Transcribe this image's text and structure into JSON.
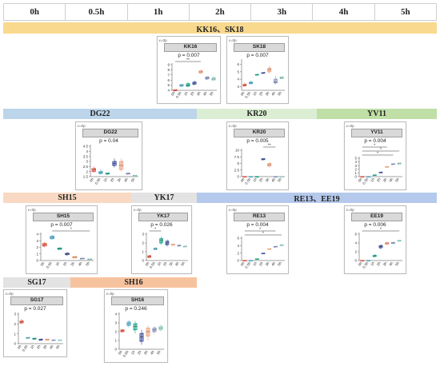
{
  "time_labels": [
    "0h",
    "0.5h",
    "1h",
    "2h",
    "3h",
    "4h",
    "5h"
  ],
  "categories": [
    "0h",
    "0.5h",
    "1h",
    "2h",
    "3h",
    "4h",
    "5h"
  ],
  "box_colors": [
    "#e8523f",
    "#4fa9c8",
    "#17a589",
    "#3b4f9a",
    "#f3a07a",
    "#8a92c2",
    "#8fd1c3"
  ],
  "bands": [
    {
      "label": "KK16、SK18",
      "color": "#f9d98d"
    },
    {
      "label": "DG22",
      "color": "#bcd5ea"
    },
    {
      "label": "KR20",
      "color": "#dbeed3"
    },
    {
      "label": "YV11",
      "color": "#bfdfa6"
    },
    {
      "label": "SH15",
      "color": "#f9d9c3"
    },
    {
      "label": "YK17",
      "color": "#e3e3e3"
    },
    {
      "label": "RE13、EE19",
      "color": "#b5c9ec"
    },
    {
      "label": "SG17",
      "color": "#e3e3e3"
    },
    {
      "label": "SH16",
      "color": "#f7c39f"
    }
  ],
  "panels": [
    {
      "title": "KK16",
      "p": "p = 0.007",
      "tag": "ε=0p",
      "ylim": [
        4,
        9
      ],
      "ticks": [
        4,
        5,
        6,
        7,
        8,
        9
      ],
      "boxes": [
        [
          3.8,
          3.9,
          4.0,
          4.1,
          4.2
        ],
        [
          4.6,
          4.8,
          5.0,
          5.1,
          5.3
        ],
        [
          4.6,
          4.8,
          5.0,
          5.3,
          5.6
        ],
        [
          5.0,
          5.2,
          5.4,
          5.6,
          5.9
        ],
        [
          7.2,
          7.4,
          7.6,
          7.8,
          8.1
        ],
        [
          6.0,
          6.2,
          6.4,
          6.6,
          6.8
        ],
        [
          5.9,
          6.0,
          6.2,
          6.5,
          6.8
        ]
      ],
      "sig": [
        {
          "from": 0,
          "to": 4,
          "mark": "**"
        }
      ]
    },
    {
      "title": "SK18",
      "p": "p = 0.007",
      "tag": "ε=0p",
      "ylim": [
        2.5,
        6.5
      ],
      "ticks": [
        3,
        4,
        5,
        6
      ],
      "boxes": [
        [
          3.0,
          3.1,
          3.2,
          3.3,
          3.5
        ],
        [
          3.3,
          3.4,
          3.5,
          3.6,
          3.8
        ],
        [
          4.5,
          4.55,
          4.6,
          4.65,
          4.7
        ],
        [
          4.75,
          4.8,
          4.85,
          4.9,
          4.95
        ],
        [
          4.8,
          5.0,
          5.3,
          5.5,
          5.8
        ],
        [
          3.3,
          3.5,
          3.6,
          4.0,
          4.4
        ],
        [
          4.0,
          4.1,
          4.2,
          4.3,
          4.4
        ]
      ],
      "sig": []
    },
    {
      "title": "DG22",
      "p": "p = 0.04",
      "tag": "ε=0p",
      "ylim": [
        1.5,
        4.5
      ],
      "ticks": [
        1.5,
        2.0,
        2.5,
        3.0,
        3.5,
        4.0,
        4.5
      ],
      "boxes": [
        [
          1.9,
          2.0,
          2.2,
          2.3,
          2.5
        ],
        [
          1.7,
          1.8,
          1.9,
          2.0,
          2.2
        ],
        [
          1.7,
          1.75,
          1.8,
          1.85,
          1.9
        ],
        [
          2.4,
          2.6,
          2.8,
          3.0,
          3.3
        ],
        [
          2.0,
          2.2,
          2.6,
          3.0,
          3.3
        ],
        [
          1.7,
          1.75,
          1.8,
          1.85,
          1.9
        ],
        [
          1.5,
          1.55,
          1.6,
          1.62,
          1.65
        ]
      ],
      "sig": []
    },
    {
      "title": "KR20",
      "p": "p = 0.005",
      "tag": "ε=0p",
      "ylim": [
        0,
        10
      ],
      "ticks": [
        0.0,
        2.5,
        5.0,
        7.5,
        10.0
      ],
      "boxes": [
        [
          0,
          0,
          0,
          0,
          0
        ],
        [
          0,
          0,
          0,
          0,
          0
        ],
        [
          0,
          0,
          0,
          0,
          0
        ],
        [
          6.2,
          6.4,
          6.6,
          6.8,
          7.0
        ],
        [
          3.5,
          4.0,
          4.5,
          5.0,
          5.5
        ],
        [
          0,
          0,
          0,
          0,
          0
        ],
        [
          0,
          0,
          0,
          0,
          0
        ]
      ],
      "sig": [
        {
          "from": 3,
          "to": 5,
          "mark": "**"
        }
      ]
    },
    {
      "title": "YV11",
      "p": "p = 0.004",
      "tag": "ε=0p",
      "ylim": [
        0,
        5
      ],
      "ticks": [
        0,
        1,
        2,
        3,
        4,
        5
      ],
      "boxes": [
        [
          0,
          0,
          0,
          0,
          0
        ],
        [
          0,
          0,
          0,
          0,
          0
        ],
        [
          0.3,
          0.35,
          0.4,
          0.45,
          0.5
        ],
        [
          1.0,
          1.05,
          1.1,
          1.2,
          1.3
        ],
        [
          2.5,
          2.6,
          2.65,
          2.7,
          2.8
        ],
        [
          3.2,
          3.3,
          3.4,
          3.5,
          3.6
        ],
        [
          3.3,
          3.4,
          3.6,
          3.7,
          3.8
        ]
      ],
      "sig": [
        {
          "from": 0,
          "to": 5,
          "mark": "*"
        },
        {
          "from": 0,
          "to": 6,
          "mark": "*"
        },
        {
          "from": 0,
          "to": 4,
          "mark": "*"
        }
      ]
    },
    {
      "title": "SH15",
      "p": "p = 0.007",
      "tag": "ε=0p",
      "ylim": [
        0,
        4
      ],
      "ticks": [
        0,
        1,
        2,
        3,
        4
      ],
      "boxes": [
        [
          2.0,
          2.2,
          2.4,
          2.6,
          2.8
        ],
        [
          3.1,
          3.3,
          3.5,
          3.7,
          3.9
        ],
        [
          1.6,
          1.7,
          1.8,
          1.9,
          2.0
        ],
        [
          0.7,
          0.9,
          1.0,
          1.1,
          1.3
        ],
        [
          0.3,
          0.4,
          0.5,
          0.6,
          0.7
        ],
        [
          0.2,
          0.25,
          0.3,
          0.35,
          0.4
        ],
        [
          0.1,
          0.15,
          0.2,
          0.25,
          0.3
        ]
      ],
      "sig": [
        {
          "from": 1,
          "to": 6,
          "mark": "*"
        }
      ]
    },
    {
      "title": "YK17",
      "p": "p = 0.026",
      "tag": "ε=0p",
      "ylim": [
        0,
        3
      ],
      "ticks": [
        0,
        1,
        2,
        3
      ],
      "boxes": [
        [
          0.3,
          0.35,
          0.45,
          0.55,
          0.6
        ],
        [
          1.2,
          1.25,
          1.3,
          1.4,
          1.5
        ],
        [
          1.8,
          2.0,
          2.3,
          2.5,
          2.7
        ],
        [
          1.6,
          1.8,
          2.0,
          2.2,
          2.4
        ],
        [
          1.7,
          1.75,
          1.8,
          1.85,
          1.9
        ],
        [
          1.6,
          1.65,
          1.7,
          1.75,
          1.8
        ],
        [
          1.5,
          1.55,
          1.6,
          1.65,
          1.7
        ]
      ],
      "sig": [
        {
          "from": 0,
          "to": 2,
          "mark": "*"
        }
      ]
    },
    {
      "title": "RE13",
      "p": "p = 0.004",
      "tag": "ε=0p",
      "ylim": [
        0,
        6
      ],
      "ticks": [
        0,
        2,
        4,
        6
      ],
      "boxes": [
        [
          0,
          0,
          0,
          0,
          0
        ],
        [
          0,
          0,
          0,
          0,
          0
        ],
        [
          0.3,
          0.35,
          0.4,
          0.45,
          0.5
        ],
        [
          1.8,
          1.85,
          1.9,
          1.95,
          2.0
        ],
        [
          3.0,
          3.05,
          3.1,
          3.15,
          3.2
        ],
        [
          3.5,
          3.6,
          3.7,
          3.8,
          3.9
        ],
        [
          3.8,
          4.0,
          4.1,
          4.2,
          4.4
        ]
      ],
      "sig": [
        {
          "from": 0,
          "to": 6,
          "mark": "*"
        },
        {
          "from": 0,
          "to": 5,
          "mark": "*"
        }
      ]
    },
    {
      "title": "EE19",
      "p": "p = 0.006",
      "tag": "ε=0p",
      "ylim": [
        0,
        6
      ],
      "ticks": [
        0,
        2,
        4,
        6
      ],
      "boxes": [
        [
          0,
          0,
          0,
          0,
          0
        ],
        [
          0,
          0,
          0,
          0,
          0
        ],
        [
          0.8,
          0.9,
          1.0,
          1.2,
          1.4
        ],
        [
          2.6,
          2.9,
          3.2,
          3.4,
          3.7
        ],
        [
          3.5,
          3.7,
          3.9,
          4.1,
          4.3
        ],
        [
          3.8,
          3.9,
          4.0,
          4.1,
          4.2
        ],
        [
          4.3,
          4.4,
          4.5,
          4.6,
          4.7
        ]
      ],
      "sig": [
        {
          "from": 0,
          "to": 6,
          "mark": "*"
        }
      ]
    },
    {
      "title": "SG17",
      "p": "p = 0.027",
      "tag": "ε=0p",
      "ylim": [
        0,
        3
      ],
      "ticks": [
        0,
        1,
        2,
        3
      ],
      "boxes": [
        [
          2.0,
          2.1,
          2.2,
          2.3,
          2.5
        ],
        [
          0.5,
          0.55,
          0.6,
          0.62,
          0.65
        ],
        [
          0.4,
          0.45,
          0.5,
          0.55,
          0.6
        ],
        [
          0.3,
          0.35,
          0.4,
          0.45,
          0.5
        ],
        [
          0.3,
          0.35,
          0.4,
          0.45,
          0.5
        ],
        [
          0.3,
          0.32,
          0.35,
          0.37,
          0.4
        ],
        [
          0.3,
          0.32,
          0.35,
          0.37,
          0.4
        ]
      ],
      "sig": []
    },
    {
      "title": "SH16",
      "p": "p = 0.246",
      "tag": "ε=0p",
      "ylim": [
        0,
        4
      ],
      "ticks": [
        0,
        1,
        2,
        3,
        4
      ],
      "boxes": [
        [
          1.9,
          2.0,
          2.1,
          2.2,
          2.3
        ],
        [
          2.5,
          2.7,
          2.9,
          3.1,
          3.3
        ],
        [
          1.8,
          2.2,
          2.6,
          2.9,
          3.2
        ],
        [
          0.5,
          0.9,
          1.4,
          1.8,
          2.2
        ],
        [
          1.0,
          1.5,
          2.0,
          2.4,
          2.7
        ],
        [
          1.8,
          2.0,
          2.2,
          2.4,
          2.6
        ],
        [
          2.0,
          2.2,
          2.4,
          2.6,
          2.8
        ]
      ],
      "sig": []
    }
  ]
}
